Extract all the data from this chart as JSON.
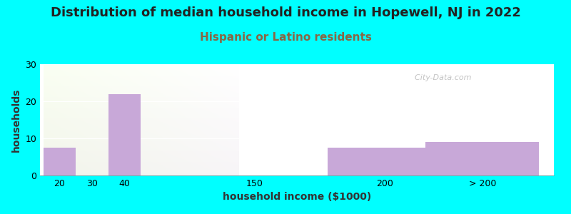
{
  "title": "Distribution of median household income in Hopewell, NJ in 2022",
  "subtitle": "Hispanic or Latino residents",
  "xlabel": "household income ($1000)",
  "ylabel": "households",
  "bar_labels": [
    "20",
    "30",
    "40",
    "150",
    "200",
    "> 200"
  ],
  "bar_values": [
    7.5,
    0,
    22,
    0,
    7.5,
    9
  ],
  "bar_color": "#C8A8D8",
  "ylim": [
    0,
    30
  ],
  "yticks": [
    0,
    10,
    20,
    30
  ],
  "background_color": "#00FFFF",
  "title_fontsize": 13,
  "subtitle_fontsize": 11,
  "subtitle_color": "#886644",
  "axis_label_fontsize": 10,
  "tick_fontsize": 9,
  "watermark": "  City-Data.com",
  "grid_color": "#FFFFFF",
  "gradient_colors": [
    "#F5FFF5",
    "#E8F5E0",
    "#F0FAF0"
  ]
}
